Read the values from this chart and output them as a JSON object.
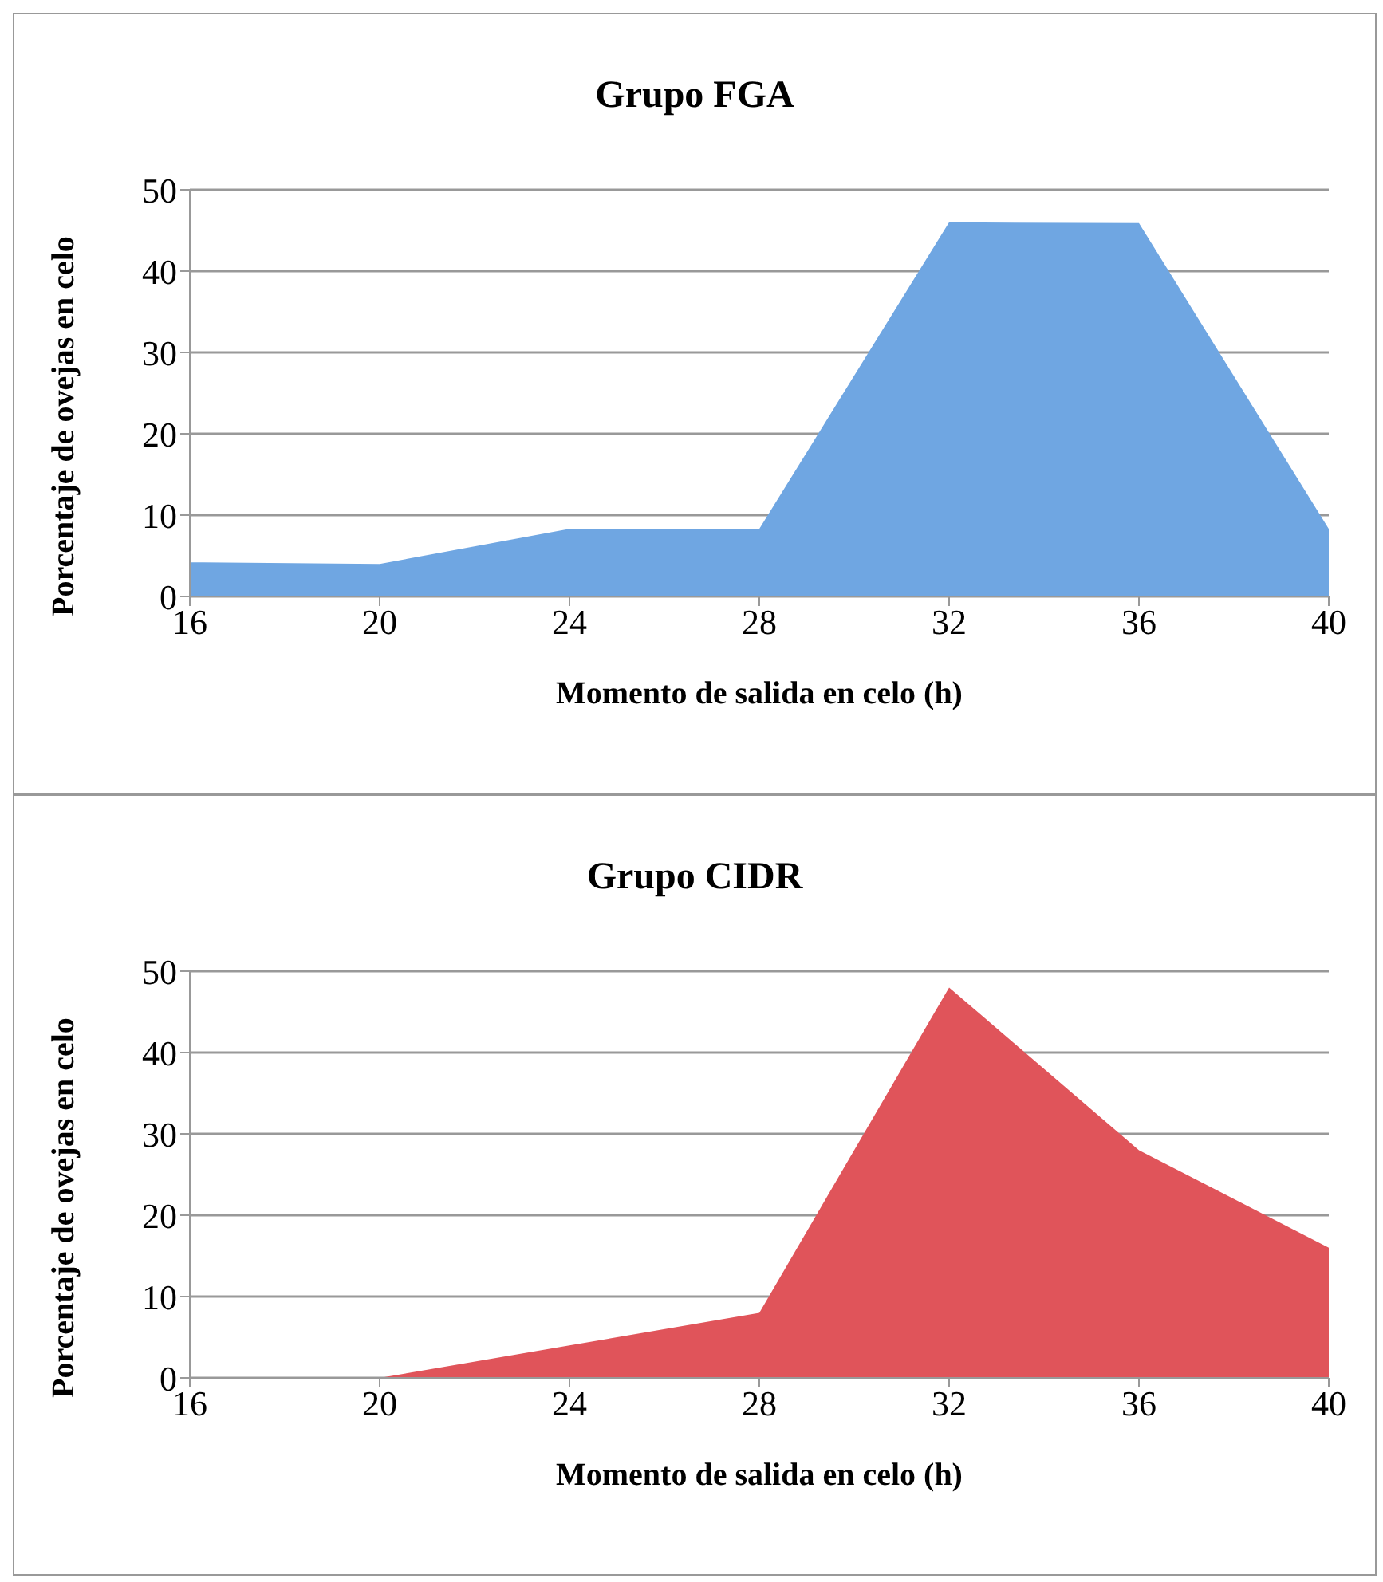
{
  "chart_data": [
    {
      "type": "area",
      "title": "Grupo FGA",
      "xlabel": "Momento de salida en celo (h)",
      "ylabel": "Porcentaje de ovejas en celo",
      "x": [
        16,
        20,
        24,
        28,
        32,
        36,
        40
      ],
      "values": [
        4.2,
        4,
        8.3,
        8.3,
        46,
        45.9,
        8.3
      ],
      "color": "#6fa6e2",
      "xlim": [
        16,
        40
      ],
      "xticks": [
        16,
        20,
        24,
        28,
        32,
        36,
        40
      ],
      "ylim": [
        0,
        50
      ],
      "yticks": [
        0,
        10,
        20,
        30,
        40,
        50
      ],
      "grid": "y"
    },
    {
      "type": "area",
      "title": "Grupo CIDR",
      "xlabel": "Momento de salida en celo (h)",
      "ylabel": "Porcentaje de ovejas en celo",
      "x": [
        16,
        20,
        24,
        28,
        32,
        36,
        40
      ],
      "values": [
        0,
        0,
        4,
        8,
        48,
        28,
        16
      ],
      "color": "#e0545a",
      "xlim": [
        16,
        40
      ],
      "xticks": [
        16,
        20,
        24,
        28,
        32,
        36,
        40
      ],
      "ylim": [
        0,
        50
      ],
      "yticks": [
        0,
        10,
        20,
        30,
        40,
        50
      ],
      "grid": "y"
    }
  ]
}
